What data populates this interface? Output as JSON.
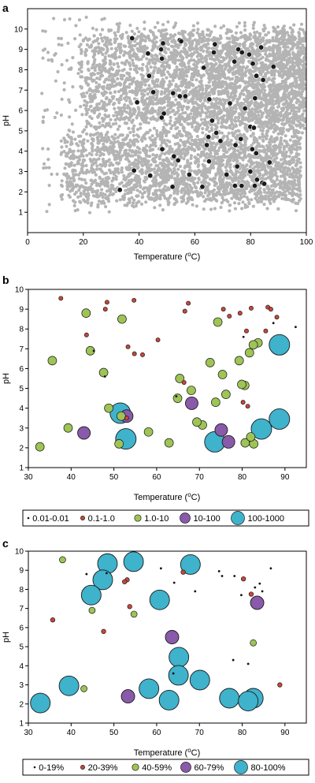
{
  "chart_data": [
    {
      "type": "scatter",
      "panel_label": "a",
      "xlabel": "Temperature (",
      "xlabel_sup": "o",
      "xlabel_end": "C)",
      "ylabel": "pH",
      "xlim": [
        0,
        100
      ],
      "ylim": [
        0,
        11
      ],
      "xticks": [
        0,
        20,
        40,
        60,
        80,
        100
      ],
      "yticks": [
        1,
        2,
        3,
        4,
        5,
        6,
        7,
        8,
        9,
        10
      ],
      "background_color": "#b4b4b4",
      "highlight_color": "#1a1a1a",
      "highlight_points": [
        [
          37.5,
          9.55
        ],
        [
          48.6,
          9.3
        ],
        [
          54.6,
          9.45
        ],
        [
          67.2,
          9.25
        ],
        [
          75.6,
          9.0
        ],
        [
          83.8,
          9.1
        ],
        [
          43.2,
          8.8
        ],
        [
          47.9,
          9.0
        ],
        [
          48.2,
          8.55
        ],
        [
          66.8,
          8.85
        ],
        [
          76.9,
          8.85
        ],
        [
          79.5,
          8.75
        ],
        [
          74.2,
          8.4
        ],
        [
          80.8,
          8.3
        ],
        [
          88.2,
          8.15
        ],
        [
          63.2,
          8.1
        ],
        [
          43.6,
          7.7
        ],
        [
          82.1,
          7.7
        ],
        [
          84.5,
          7.5
        ],
        [
          45.1,
          6.9
        ],
        [
          52.2,
          6.85
        ],
        [
          54.6,
          6.7
        ],
        [
          56.6,
          6.7
        ],
        [
          65.2,
          6.55
        ],
        [
          81.6,
          6.6
        ],
        [
          39.3,
          6.4
        ],
        [
          72.6,
          6.35
        ],
        [
          78.0,
          6.1
        ],
        [
          48.9,
          5.85
        ],
        [
          48.1,
          5.65
        ],
        [
          66.2,
          5.5
        ],
        [
          79.9,
          5.2
        ],
        [
          81.2,
          5.15
        ],
        [
          64.9,
          4.7
        ],
        [
          69.2,
          4.5
        ],
        [
          67.7,
          4.9
        ],
        [
          64.3,
          4.3
        ],
        [
          74.6,
          4.3
        ],
        [
          76.5,
          4.6
        ],
        [
          80.6,
          4.1
        ],
        [
          82.0,
          3.9
        ],
        [
          48.3,
          4.1
        ],
        [
          52.5,
          3.75
        ],
        [
          54.0,
          3.55
        ],
        [
          65.1,
          3.5
        ],
        [
          75.2,
          3.25
        ],
        [
          79.9,
          3.0
        ],
        [
          86.8,
          3.45
        ],
        [
          38.2,
          3.05
        ],
        [
          44.0,
          2.8
        ],
        [
          58.0,
          2.85
        ],
        [
          71.4,
          2.85
        ],
        [
          82.3,
          2.6
        ],
        [
          84.2,
          2.45
        ],
        [
          52.0,
          2.25
        ],
        [
          62.7,
          2.25
        ],
        [
          74.4,
          2.3
        ],
        [
          76.8,
          2.3
        ],
        [
          81.5,
          2.3
        ],
        [
          84.9,
          2.4
        ],
        [
          33.1,
          2.1
        ],
        [
          55.1,
          9.4
        ]
      ]
    },
    {
      "type": "scatter",
      "panel_label": "b",
      "xlabel": "Temperature (",
      "xlabel_sup": "o",
      "xlabel_end": "C)",
      "ylabel": "pH",
      "xlim": [
        30,
        95
      ],
      "ylim": [
        1,
        10
      ],
      "xticks": [
        30,
        40,
        50,
        60,
        70,
        80,
        90
      ],
      "yticks": [
        1,
        2,
        3,
        4,
        5,
        6,
        7,
        8,
        9,
        10
      ],
      "legend": [
        "0.01-0.01",
        "0.1-1.0",
        "1.0-10",
        "10-100",
        "100-1000"
      ],
      "legend_placement": "bottom",
      "series": [
        {
          "name": "0.01-0.01",
          "color": "#111111",
          "r": 1.4,
          "points": [
            [
              47.9,
              5.6
            ],
            [
              80.3,
              7.6
            ],
            [
              87.3,
              8.3
            ],
            [
              92.5,
              8.1
            ],
            [
              45.3,
              6.9
            ],
            [
              64.6,
              4.6
            ]
          ]
        },
        {
          "name": "0.1-1.0",
          "color": "#c8473b",
          "r": 2.6,
          "points": [
            [
              37.6,
              9.55
            ],
            [
              48.4,
              9.35
            ],
            [
              54.7,
              9.45
            ],
            [
              67.4,
              9.3
            ],
            [
              75.6,
              9.0
            ],
            [
              48.0,
              9.0
            ],
            [
              43.6,
              7.7
            ],
            [
              66.6,
              8.9
            ],
            [
              77.0,
              8.65
            ],
            [
              79.5,
              8.8
            ],
            [
              82.1,
              9.05
            ],
            [
              86.0,
              9.1
            ],
            [
              85.5,
              7.9
            ],
            [
              81.0,
              7.9
            ],
            [
              88.1,
              8.6
            ],
            [
              53.3,
              7.1
            ],
            [
              54.8,
              6.75
            ],
            [
              56.7,
              6.7
            ],
            [
              60.3,
              7.45
            ],
            [
              66.4,
              5.3
            ],
            [
              81.3,
              4.1
            ],
            [
              80.2,
              4.3
            ],
            [
              53.0,
              3.5
            ],
            [
              86.7,
              9.0
            ]
          ]
        },
        {
          "name": "1.0-10",
          "color": "#9ec455",
          "r": 5.5,
          "points": [
            [
              35.6,
              6.4
            ],
            [
              43.5,
              8.8
            ],
            [
              44.5,
              6.9
            ],
            [
              51.9,
              8.5
            ],
            [
              74.3,
              8.35
            ],
            [
              83.7,
              7.3
            ],
            [
              82.6,
              7.2
            ],
            [
              81.7,
              6.8
            ],
            [
              79.3,
              6.4
            ],
            [
              75.4,
              5.7
            ],
            [
              72.5,
              6.3
            ],
            [
              68.1,
              4.9
            ],
            [
              65.4,
              5.5
            ],
            [
              64.9,
              4.5
            ],
            [
              73.8,
              4.3
            ],
            [
              76.2,
              4.7
            ],
            [
              80.6,
              5.15
            ],
            [
              79.9,
              5.2
            ],
            [
              47.6,
              5.8
            ],
            [
              48.8,
              4.0
            ],
            [
              39.3,
              3.0
            ],
            [
              51.7,
              3.6
            ],
            [
              70.7,
              3.15
            ],
            [
              69.4,
              3.3
            ],
            [
              58.1,
              2.8
            ],
            [
              62.9,
              2.25
            ],
            [
              80.7,
              2.25
            ],
            [
              82.7,
              2.2
            ],
            [
              82.0,
              2.55
            ],
            [
              51.2,
              2.2
            ],
            [
              32.7,
              2.05
            ]
          ]
        },
        {
          "name": "10-100",
          "color": "#8a5aaa",
          "r": 8,
          "points": [
            [
              43.0,
              2.75
            ],
            [
              53.0,
              3.6
            ],
            [
              68.2,
              4.25
            ],
            [
              75.1,
              2.9
            ],
            [
              76.8,
              2.3
            ]
          ]
        },
        {
          "name": "100-1000",
          "color": "#3fb2cc",
          "r": 13,
          "points": [
            [
              51.5,
              3.75
            ],
            [
              52.8,
              2.45
            ],
            [
              73.6,
              2.3
            ],
            [
              84.5,
              2.95
            ],
            [
              88.7,
              3.45
            ],
            [
              88.7,
              7.2
            ]
          ]
        }
      ]
    },
    {
      "type": "scatter",
      "panel_label": "c",
      "xlabel": "Temperature (",
      "xlabel_sup": "o",
      "xlabel_end": "C)",
      "ylabel": "pH",
      "xlim": [
        30,
        95
      ],
      "ylim": [
        1,
        10
      ],
      "xticks": [
        30,
        40,
        50,
        60,
        70,
        80,
        90
      ],
      "yticks": [
        1,
        2,
        3,
        4,
        5,
        6,
        7,
        8,
        9,
        10
      ],
      "legend": [
        "0-19%",
        "20-39%",
        "40-59%",
        "60-79%",
        "80-100%"
      ],
      "legend_placement": "bottom",
      "series": [
        {
          "name": "0-19%",
          "color": "#111111",
          "r": 1.4,
          "points": [
            [
              43.6,
              8.8
            ],
            [
              61.0,
              9.1
            ],
            [
              64.1,
              8.35
            ],
            [
              69.0,
              7.9
            ],
            [
              74.6,
              8.95
            ],
            [
              75.3,
              8.7
            ],
            [
              78.2,
              8.7
            ],
            [
              79.8,
              7.7
            ],
            [
              83.0,
              8.1
            ],
            [
              84.1,
              8.3
            ],
            [
              84.7,
              7.9
            ],
            [
              86.7,
              9.1
            ],
            [
              77.9,
              4.3
            ],
            [
              81.4,
              4.1
            ],
            [
              48.3,
              8.85
            ],
            [
              63.9,
              3.6
            ]
          ]
        },
        {
          "name": "20-39%",
          "color": "#c8473b",
          "r": 2.8,
          "points": [
            [
              35.7,
              6.4
            ],
            [
              47.6,
              5.8
            ],
            [
              53.1,
              8.5
            ],
            [
              53.7,
              7.1
            ],
            [
              66.2,
              8.9
            ],
            [
              80.3,
              8.55
            ],
            [
              82.1,
              7.75
            ],
            [
              88.8,
              3.0
            ],
            [
              52.5,
              8.4
            ]
          ]
        },
        {
          "name": "40-59%",
          "color": "#9ec455",
          "r": 4,
          "points": [
            [
              38.0,
              9.55
            ],
            [
              44.9,
              6.9
            ],
            [
              54.7,
              6.7
            ],
            [
              43.0,
              2.8
            ],
            [
              82.6,
              5.2
            ]
          ]
        },
        {
          "name": "60-79%",
          "color": "#8a5aaa",
          "r": 8.5,
          "points": [
            [
              63.6,
              5.5
            ],
            [
              53.3,
              2.4
            ],
            [
              83.5,
              7.3
            ]
          ]
        },
        {
          "name": "80-100%",
          "color": "#3fb2cc",
          "r": 12.5,
          "points": [
            [
              48.5,
              9.35
            ],
            [
              54.6,
              9.45
            ],
            [
              67.9,
              9.3
            ],
            [
              47.4,
              8.5
            ],
            [
              44.7,
              7.7
            ],
            [
              60.7,
              7.45
            ],
            [
              65.2,
              4.45
            ],
            [
              65.1,
              3.5
            ],
            [
              70.1,
              3.25
            ],
            [
              58.2,
              2.8
            ],
            [
              62.9,
              2.2
            ],
            [
              39.5,
              2.95
            ],
            [
              32.8,
              2.05
            ],
            [
              77.0,
              2.3
            ],
            [
              82.6,
              2.3
            ],
            [
              81.4,
              2.15
            ]
          ]
        }
      ]
    }
  ]
}
